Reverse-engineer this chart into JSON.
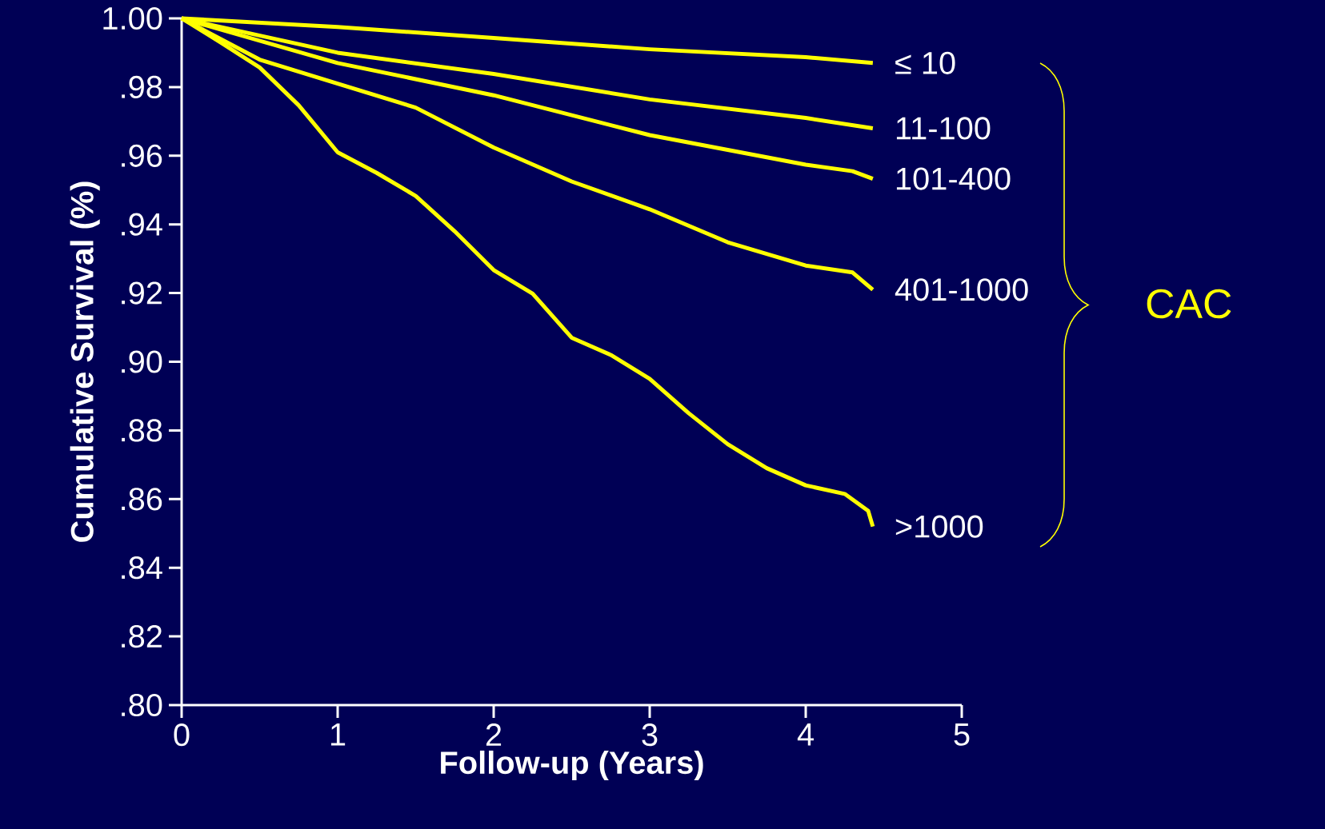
{
  "chart_data": {
    "type": "line",
    "xlabel": "Follow-up (Years)",
    "ylabel": "Cumulative Survival (%)",
    "legend_title": "CAC",
    "xlim": [
      0,
      5
    ],
    "xticks": [
      0,
      1,
      2,
      3,
      4,
      5
    ],
    "ylim": [
      0.8,
      1.0
    ],
    "yticks": [
      {
        "value": 0.8,
        "label": ".80"
      },
      {
        "value": 0.82,
        "label": ".82"
      },
      {
        "value": 0.84,
        "label": ".84"
      },
      {
        "value": 0.86,
        "label": ".86"
      },
      {
        "value": 0.88,
        "label": ".88"
      },
      {
        "value": 0.9,
        "label": ".90"
      },
      {
        "value": 0.92,
        "label": ".92"
      },
      {
        "value": 0.94,
        "label": ".94"
      },
      {
        "value": 0.96,
        "label": ".96"
      },
      {
        "value": 0.98,
        "label": ".98"
      },
      {
        "value": 1.0,
        "label": "1.00"
      }
    ],
    "grid": false,
    "marker": "none",
    "line_style": "solid",
    "series": [
      {
        "name": "≤ 10",
        "color": "#ffff00",
        "x": [
          0,
          1,
          2,
          3,
          4,
          4.43
        ],
        "values": [
          1.0,
          0.9975,
          0.9943,
          0.991,
          0.9887,
          0.987
        ]
      },
      {
        "name": "11-100",
        "color": "#ffff00",
        "x": [
          0,
          1,
          2,
          3,
          4,
          4.43
        ],
        "values": [
          1.0,
          0.99,
          0.9838,
          0.9764,
          0.971,
          0.968
        ]
      },
      {
        "name": "101-400",
        "color": "#ffff00",
        "x": [
          0,
          1,
          2,
          3,
          4,
          4.3,
          4.43
        ],
        "values": [
          1.0,
          0.987,
          0.9776,
          0.966,
          0.9574,
          0.9555,
          0.9533
        ]
      },
      {
        "name": "401-1000",
        "color": "#ffff00",
        "x": [
          0,
          0.5,
          1,
          1.5,
          2,
          2.5,
          3,
          3.5,
          4,
          4.3,
          4.43
        ],
        "values": [
          1.0,
          0.988,
          0.981,
          0.974,
          0.9624,
          0.9525,
          0.9444,
          0.9348,
          0.928,
          0.926,
          0.921
        ]
      },
      {
        "name": ">1000",
        "color": "#ffff00",
        "x": [
          0,
          0.25,
          0.5,
          0.75,
          1,
          1.25,
          1.5,
          1.75,
          2,
          2.25,
          2.5,
          2.75,
          3,
          3.25,
          3.5,
          3.75,
          4,
          4.25,
          4.4,
          4.43
        ],
        "values": [
          1.0,
          0.993,
          0.9857,
          0.9747,
          0.961,
          0.955,
          0.9483,
          0.938,
          0.9267,
          0.9198,
          0.907,
          0.902,
          0.895,
          0.885,
          0.876,
          0.869,
          0.864,
          0.8615,
          0.8566,
          0.852
        ]
      }
    ]
  }
}
